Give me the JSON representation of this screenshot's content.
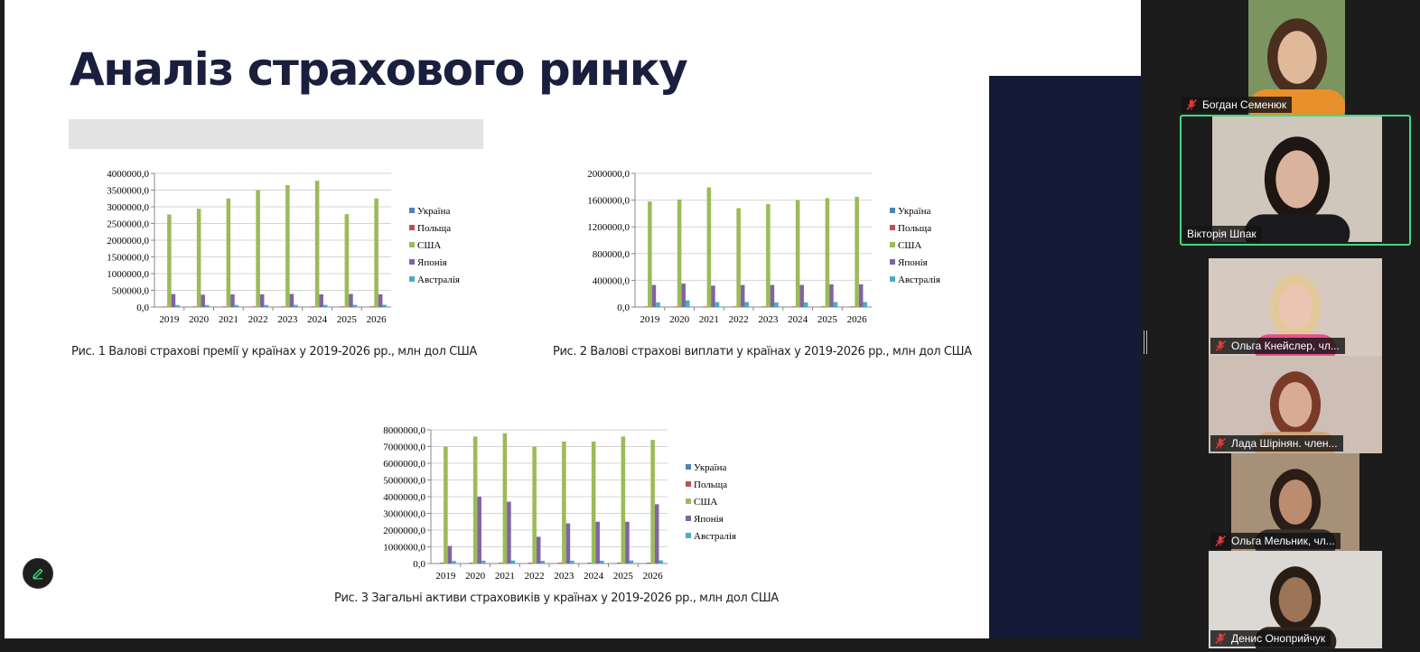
{
  "slide": {
    "title": "Аналіз страхового ринку",
    "legend": [
      "Україна",
      "Польща",
      "США",
      "Японія",
      "Австралія"
    ],
    "series_colors": [
      "#4f81bd",
      "#c0504d",
      "#9bbb59",
      "#8064a2",
      "#4bacc6"
    ]
  },
  "chart_data": [
    {
      "type": "bar",
      "title": "",
      "caption": "Рис. 1 Валові страхові премії у країнах у 2019-2026 рр., млн дол США",
      "categories": [
        "2019",
        "2020",
        "2021",
        "2022",
        "2023",
        "2024",
        "2025",
        "2026"
      ],
      "ylim": [
        0,
        4000000
      ],
      "yticks": [
        "0,0",
        "500000,0",
        "1000000,0",
        "1500000,0",
        "2000000,0",
        "2500000,0",
        "3000000,0",
        "3500000,0",
        "4000000,0"
      ],
      "ytick_values": [
        0,
        500000,
        1000000,
        1500000,
        2000000,
        2500000,
        3000000,
        3500000,
        4000000
      ],
      "legend_position": "right",
      "series": [
        {
          "name": "Україна",
          "values": [
            1500,
            1700,
            1800,
            1600,
            1700,
            1800,
            1600,
            1700
          ]
        },
        {
          "name": "Польща",
          "values": [
            17000,
            17500,
            18000,
            18500,
            19000,
            19500,
            20000,
            20500
          ]
        },
        {
          "name": "США",
          "values": [
            2770000,
            2940000,
            3250000,
            3500000,
            3650000,
            3780000,
            2780000,
            3250000
          ]
        },
        {
          "name": "Японія",
          "values": [
            390000,
            370000,
            380000,
            380000,
            390000,
            380000,
            390000,
            380000
          ]
        },
        {
          "name": "Австралія",
          "values": [
            60000,
            60000,
            62000,
            62000,
            64000,
            64000,
            65000,
            66000
          ]
        }
      ]
    },
    {
      "type": "bar",
      "title": "",
      "caption": "Рис. 2 Валові страхові виплати у країнах у 2019-2026 рр., млн дол США",
      "categories": [
        "2019",
        "2020",
        "2021",
        "2022",
        "2023",
        "2024",
        "2025",
        "2026"
      ],
      "ylim": [
        0,
        2000000
      ],
      "yticks": [
        "0,0",
        "400000,0",
        "800000,0",
        "1200000,0",
        "1600000,0",
        "2000000,0"
      ],
      "ytick_values": [
        0,
        400000,
        800000,
        1200000,
        1600000,
        2000000
      ],
      "legend_position": "right",
      "series": [
        {
          "name": "Україна",
          "values": [
            600,
            650,
            700,
            600,
            650,
            700,
            600,
            650
          ]
        },
        {
          "name": "Польща",
          "values": [
            8000,
            8500,
            9000,
            9000,
            9500,
            9500,
            10000,
            10000
          ]
        },
        {
          "name": "США",
          "values": [
            1580000,
            1610000,
            1790000,
            1480000,
            1540000,
            1600000,
            1630000,
            1650000
          ]
        },
        {
          "name": "Японія",
          "values": [
            330000,
            350000,
            320000,
            330000,
            330000,
            330000,
            340000,
            340000
          ]
        },
        {
          "name": "Австралія",
          "values": [
            70000,
            100000,
            75000,
            75000,
            70000,
            70000,
            75000,
            75000
          ]
        }
      ]
    },
    {
      "type": "bar",
      "title": "",
      "caption": "Рис. 3  Загальні активи страховиків у країнах  у 2019-2026 рр., млн дол США",
      "categories": [
        "2019",
        "2020",
        "2021",
        "2022",
        "2023",
        "2024",
        "2025",
        "2026"
      ],
      "ylim": [
        0,
        8000000
      ],
      "yticks": [
        "0,0",
        "1000000,0",
        "2000000,0",
        "3000000,0",
        "4000000,0",
        "5000000,0",
        "6000000,0",
        "7000000,0",
        "8000000,0"
      ],
      "ytick_values": [
        0,
        1000000,
        2000000,
        3000000,
        4000000,
        5000000,
        6000000,
        7000000,
        8000000
      ],
      "legend_position": "right",
      "series": [
        {
          "name": "Україна",
          "values": [
            2000,
            2200,
            2400,
            2300,
            2500,
            2600,
            2700,
            2800
          ]
        },
        {
          "name": "Польща",
          "values": [
            45000,
            46000,
            47000,
            48000,
            49000,
            50000,
            51000,
            52000
          ]
        },
        {
          "name": "США",
          "values": [
            7000000,
            7600000,
            7800000,
            7000000,
            7300000,
            7300000,
            7600000,
            7400000
          ]
        },
        {
          "name": "Японія",
          "values": [
            1050000,
            4000000,
            3700000,
            1600000,
            2400000,
            2500000,
            2500000,
            3550000
          ]
        },
        {
          "name": "Австралія",
          "values": [
            150000,
            170000,
            180000,
            160000,
            170000,
            170000,
            180000,
            190000
          ]
        }
      ]
    }
  ],
  "participants": [
    {
      "name": "Богдан Семенюк",
      "active": false,
      "muted": true,
      "bg": "#7b9460",
      "skin": "#e0b89a",
      "hair": "#4a2e1e",
      "shirt": "#e8902a"
    },
    {
      "name": "Вікторія Шпак",
      "active": true,
      "muted": false,
      "bg": "#cfc6bc",
      "skin": "#dab39c",
      "hair": "#1e1613",
      "shirt": "#1b1b1d"
    },
    {
      "name": "Ольга Кнейслер, чл...",
      "active": false,
      "muted": true,
      "bg": "#d6c9c0",
      "skin": "#ecc5b2",
      "hair": "#e2c89a",
      "shirt": "#e64f8a"
    },
    {
      "name": "Лада Шірінян. член...",
      "active": false,
      "muted": true,
      "bg": "#cdbfb6",
      "skin": "#d7ac92",
      "hair": "#7a3a28",
      "shirt": "#cfa57e"
    },
    {
      "name": "Ольга Мельник, чл...",
      "active": false,
      "muted": true,
      "bg": "#a79078",
      "skin": "#bb8c70",
      "hair": "#2a1d17",
      "shirt": "#35312f"
    },
    {
      "name": "Денис Оноприйчук",
      "active": false,
      "muted": true,
      "bg": "#dcd8d4",
      "skin": "#9c7458",
      "hair": "#2a1d15",
      "shirt": "#2c2520"
    }
  ]
}
